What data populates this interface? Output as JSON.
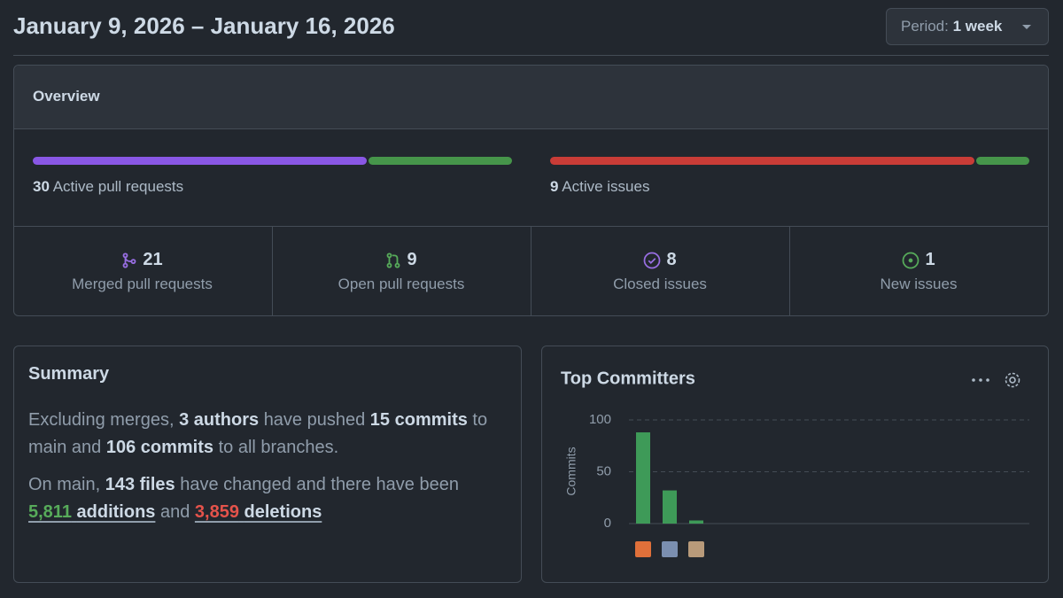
{
  "header": {
    "title": "January 9, 2026 – January 16, 2026",
    "period_label": "Period:",
    "period_value": "1 week"
  },
  "overview": {
    "title": "Overview",
    "active_pull_requests": {
      "count": 30,
      "label": "Active pull requests"
    },
    "active_issues": {
      "count": 9,
      "label": "Active issues"
    },
    "stats": [
      {
        "value": 21,
        "label": "Merged pull requests"
      },
      {
        "value": 9,
        "label": "Open pull requests"
      },
      {
        "value": 8,
        "label": "Closed issues"
      },
      {
        "value": 1,
        "label": "New issues"
      }
    ]
  },
  "summary": {
    "title": "Summary",
    "paragraphs": [
      [
        "Excluding merges,",
        "3 authors",
        "have pushed",
        "15 commits",
        "to main and",
        "106 commits",
        "to all branches."
      ],
      [
        "On main,",
        "143 files",
        "have changed and there have been",
        "5,811",
        "additions",
        "and",
        "3,859",
        "deletions"
      ]
    ]
  },
  "chart_data": {
    "type": "bar",
    "title": "Top Committers",
    "y_label": "Commits",
    "categories": [
      null,
      null,
      null
    ],
    "values": [
      88,
      32,
      3
    ],
    "color": "#3e9a58",
    "ylim": [
      0,
      100
    ],
    "yticks": [
      0,
      50,
      100
    ],
    "grid": true
  }
}
